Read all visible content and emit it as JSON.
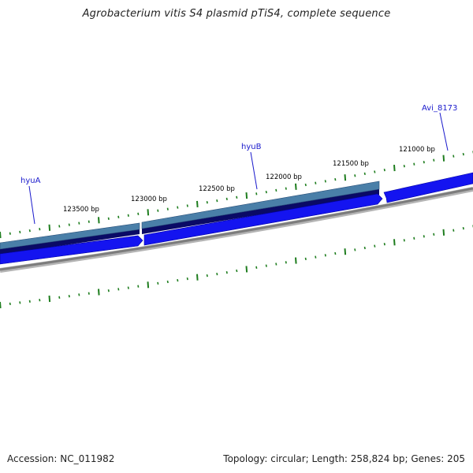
{
  "title": "Agrobacterium vitis S4 plasmid pTiS4, complete sequence",
  "footer": {
    "accession": "Accession: NC_011982",
    "summary": "Topology: circular; Length: 258,824 bp; Genes: 205"
  },
  "colors": {
    "tick": "#1e7d1e",
    "gene_label": "#1a1acc",
    "cds_forward_upper": "#4a7fa8",
    "cds_forward_lower": "#0a0a66",
    "gene": "#0a0aee",
    "backbone": "#8a8a8a"
  },
  "scale_labels": [
    {
      "bp": 123500,
      "text": "123500 bp"
    },
    {
      "bp": 123000,
      "text": "123000 bp"
    },
    {
      "bp": 122500,
      "text": "122500 bp"
    },
    {
      "bp": 122000,
      "text": "122000 bp"
    },
    {
      "bp": 121500,
      "text": "121500 bp"
    },
    {
      "bp": 121000,
      "text": "121000 bp"
    }
  ],
  "genes": [
    {
      "name": "hyuA",
      "icon": "leftward-arrow"
    },
    {
      "name": "hyuB",
      "icon": "leftward-arrow"
    },
    {
      "name": "Avi_8173",
      "icon": "rightward-arrow"
    }
  ]
}
